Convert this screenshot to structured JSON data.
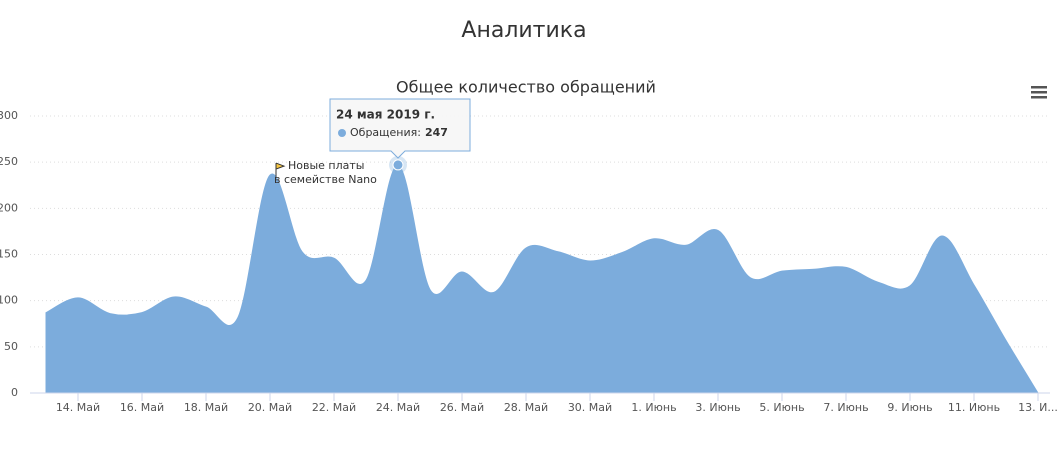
{
  "page_title": "Аналитика",
  "chart_data": {
    "type": "areaspline",
    "title": "Общее количество обращений",
    "categories": [
      null,
      "14. Май",
      null,
      "16. Май",
      null,
      "18. Май",
      null,
      "20. Май",
      null,
      "22. Май",
      null,
      "24. Май",
      null,
      "26. Май",
      null,
      "28. Май",
      null,
      "30. Май",
      null,
      "1. Июнь",
      null,
      "3. Июнь",
      null,
      "5. Июнь",
      null,
      "7. Июнь",
      null,
      "9. Июнь",
      null,
      "11. Июнь",
      null,
      "13. И..."
    ],
    "series": [
      {
        "name": "Обращения",
        "color": "#7cacdc",
        "values": [
          87,
          103,
          86,
          87,
          104,
          93,
          82,
          236,
          153,
          146,
          122,
          247,
          112,
          131,
          109,
          157,
          153,
          143,
          152,
          167,
          160,
          176,
          125,
          132,
          134,
          136,
          120,
          116,
          170,
          117,
          57,
          0
        ]
      }
    ],
    "ylim": [
      0,
      300
    ],
    "yticks": [
      0,
      50,
      100,
      150,
      200,
      250,
      300
    ],
    "grid": true,
    "annotation": {
      "index": 7,
      "lines": [
        "Новые платы",
        "в семействе Nano"
      ]
    },
    "tooltip": {
      "index": 11,
      "title": "24 мая 2019 г.",
      "label": "Обращения:"
    }
  }
}
